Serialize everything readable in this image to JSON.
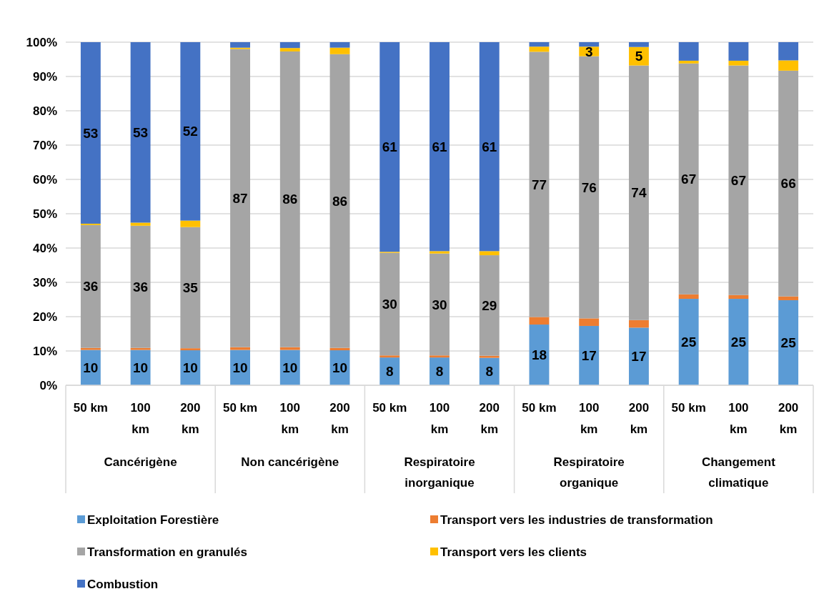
{
  "chart_data": {
    "type": "bar",
    "stacked": true,
    "categories": [
      "50 km",
      "100 km",
      "200 km",
      "50 km",
      "100 km",
      "200 km",
      "50 km",
      "100 km",
      "200 km",
      "50 km",
      "100 km",
      "200 km",
      "50 km",
      "100 km",
      "200 km"
    ],
    "annotations": [
      "Cancérigène",
      "Non cancérigène",
      "Respiratoire inorganique",
      "Respiratoire organique",
      "Changement climatique"
    ],
    "series": [
      {
        "name": "Exploitation Forestière",
        "color": "#5b9bd5",
        "values": [
          10.3,
          10.3,
          10.2,
          10.3,
          10.3,
          10.2,
          8.1,
          8.1,
          8,
          17.7,
          17.3,
          16.8,
          25.2,
          25.2,
          24.8
        ],
        "value_labels": [
          "10",
          "10",
          "10",
          "10",
          "10",
          "10",
          "8",
          "8",
          "8",
          "18",
          "17",
          "17",
          "25",
          "25",
          "25"
        ]
      },
      {
        "name": "Transport vers les industries de transformation",
        "color": "#ed7d31",
        "values": [
          0.6,
          0.6,
          0.6,
          0.8,
          0.8,
          0.7,
          0.6,
          0.6,
          0.6,
          2.2,
          2.2,
          2.2,
          1.3,
          1.1,
          1.1
        ]
      },
      {
        "name": "Transformation en granulés",
        "color": "#a5a5a5",
        "values": [
          35.8,
          35.6,
          35.3,
          86.9,
          86.2,
          85.6,
          29.9,
          29.7,
          29.3,
          77.3,
          76.4,
          74.2,
          67.3,
          66.9,
          65.8
        ],
        "value_labels": [
          "36",
          "36",
          "35",
          "87",
          "86",
          "86",
          "30",
          "30",
          "29",
          "77",
          "76",
          "74",
          "67",
          "67",
          "66"
        ]
      },
      {
        "name": "Transport vers les clients",
        "color": "#ffc000",
        "values": [
          0.4,
          0.9,
          1.9,
          0.4,
          1,
          1.9,
          0.3,
          0.7,
          1.2,
          1.5,
          2.8,
          5.4,
          0.8,
          1.4,
          3
        ],
        "value_labels": [
          null,
          null,
          null,
          null,
          null,
          null,
          null,
          null,
          null,
          null,
          "3",
          "5",
          null,
          null,
          null
        ]
      },
      {
        "name": "Combustion",
        "color": "#4472c4",
        "values": [
          52.9,
          52.6,
          52,
          1.6,
          1.7,
          1.6,
          61.1,
          60.9,
          60.9,
          1.3,
          1.3,
          1.4,
          5.4,
          5.4,
          5.3
        ],
        "value_labels": [
          "53",
          "53",
          "52",
          null,
          null,
          null,
          "61",
          "61",
          "61",
          null,
          null,
          null,
          null,
          null,
          null
        ]
      }
    ],
    "ylim": [
      0,
      100
    ],
    "yticks": [
      {
        "value": 0,
        "label": "0%"
      },
      {
        "value": 10,
        "label": "10%"
      },
      {
        "value": 20,
        "label": "20%"
      },
      {
        "value": 30,
        "label": "30%"
      },
      {
        "value": 40,
        "label": "40%"
      },
      {
        "value": 50,
        "label": "50%"
      },
      {
        "value": 60,
        "label": "60%"
      },
      {
        "value": 70,
        "label": "70%"
      },
      {
        "value": 80,
        "label": "80%"
      },
      {
        "value": 90,
        "label": "90%"
      },
      {
        "value": 100,
        "label": "100%"
      }
    ],
    "grid": "y",
    "legend": "bottom"
  }
}
